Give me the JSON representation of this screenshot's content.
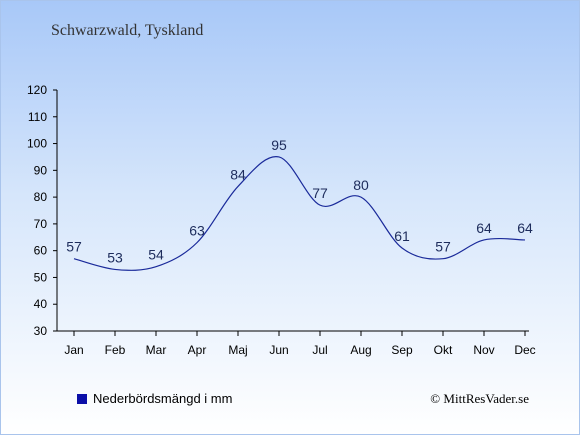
{
  "header": {
    "place": "Schwarzwald, Tyskland"
  },
  "legend": {
    "label": "Nederbördsmängd i mm",
    "color": "#0b0fa8"
  },
  "footer": {
    "credit": "© MittResVader.se"
  },
  "chart_data": {
    "type": "line",
    "title": "",
    "xlabel": "",
    "ylabel": "",
    "categories": [
      "Jan",
      "Feb",
      "Mar",
      "Apr",
      "Maj",
      "Jun",
      "Jul",
      "Aug",
      "Sep",
      "Okt",
      "Nov",
      "Dec"
    ],
    "series": [
      {
        "name": "Nederbördsmängd i mm",
        "values": [
          57,
          53,
          54,
          63,
          84,
          95,
          77,
          80,
          61,
          57,
          64,
          64
        ],
        "color": "#1a2a9a"
      }
    ],
    "ylim": [
      30,
      120
    ],
    "yticks": [
      30,
      40,
      50,
      60,
      70,
      80,
      90,
      100,
      110,
      120
    ],
    "grid": false,
    "legend_position": "bottom-left"
  }
}
